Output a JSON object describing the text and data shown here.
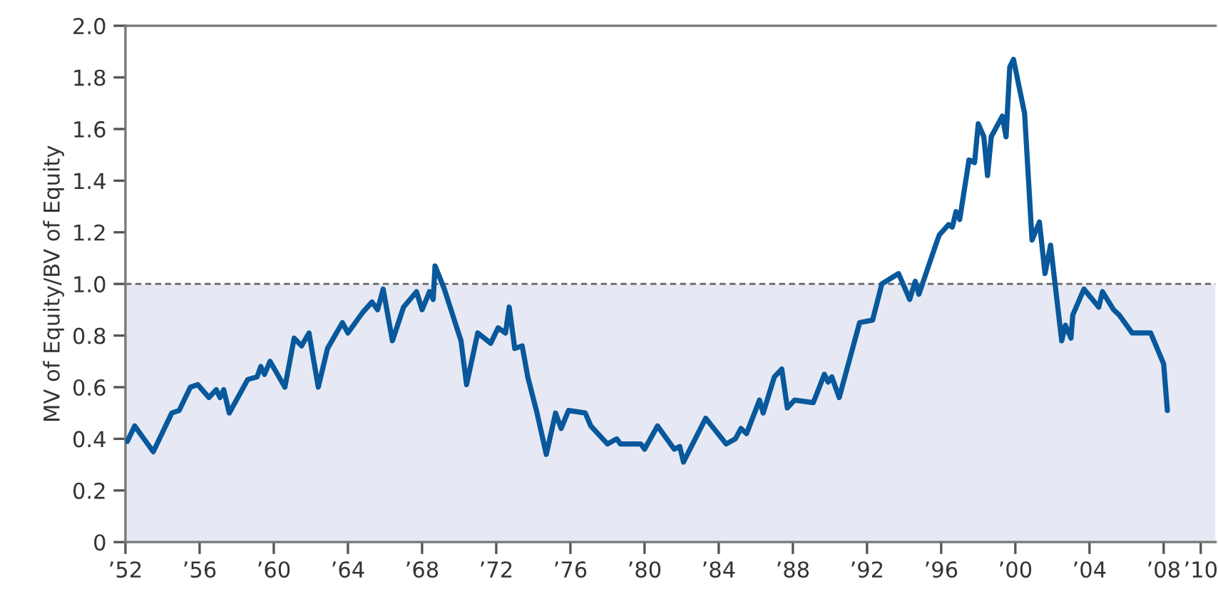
{
  "chart_data": {
    "type": "line",
    "ylabel": "MV of Equity/BV of Equity",
    "x": [
      1952.1,
      1952.5,
      1953.5,
      1954.5,
      1954.9,
      1955.5,
      1955.9,
      1956.5,
      1956.9,
      1957.1,
      1957.3,
      1957.6,
      1958.6,
      1959.1,
      1959.3,
      1959.5,
      1959.8,
      1960.6,
      1961.1,
      1961.5,
      1961.9,
      1962.4,
      1962.9,
      1963.7,
      1964.0,
      1964.8,
      1965.3,
      1965.6,
      1965.9,
      1966.4,
      1967.0,
      1967.7,
      1968.0,
      1968.4,
      1968.6,
      1968.7,
      1969.2,
      1970.1,
      1970.4,
      1971.0,
      1971.7,
      1972.1,
      1972.5,
      1972.7,
      1973.0,
      1973.4,
      1973.7,
      1974.2,
      1974.7,
      1975.2,
      1975.5,
      1975.9,
      1976.8,
      1977.1,
      1978.0,
      1978.5,
      1978.7,
      1979.8,
      1980.0,
      1980.7,
      1981.6,
      1981.9,
      1982.1,
      1983.3,
      1984.4,
      1984.9,
      1985.2,
      1985.5,
      1986.2,
      1986.4,
      1987.0,
      1987.4,
      1987.7,
      1988.1,
      1989.1,
      1989.7,
      1989.9,
      1990.1,
      1990.5,
      1991.6,
      1992.3,
      1992.8,
      1993.7,
      1994.3,
      1994.6,
      1994.8,
      1995.7,
      1995.9,
      1996.4,
      1996.6,
      1996.8,
      1997.0,
      1997.5,
      1997.8,
      1998.0,
      1998.3,
      1998.5,
      1998.7,
      1999.3,
      1999.5,
      1999.7,
      1999.9,
      2000.5,
      2000.9,
      2001.3,
      2001.6,
      2001.9,
      2002.5,
      2002.7,
      2003.0,
      2003.1,
      2003.7,
      2004.5,
      2004.7,
      2005.3,
      2005.6,
      2006.3,
      2006.6,
      2007.3,
      2008.0,
      2008.2
    ],
    "series": [
      {
        "color": "#08589b",
        "values": [
          0.39,
          0.45,
          0.35,
          0.5,
          0.51,
          0.6,
          0.61,
          0.56,
          0.59,
          0.56,
          0.59,
          0.5,
          0.63,
          0.64,
          0.68,
          0.65,
          0.7,
          0.6,
          0.79,
          0.76,
          0.81,
          0.6,
          0.75,
          0.85,
          0.81,
          0.89,
          0.93,
          0.9,
          0.98,
          0.78,
          0.91,
          0.97,
          0.9,
          0.97,
          0.94,
          1.07,
          0.98,
          0.78,
          0.61,
          0.81,
          0.77,
          0.83,
          0.81,
          0.91,
          0.75,
          0.76,
          0.64,
          0.5,
          0.34,
          0.5,
          0.44,
          0.51,
          0.5,
          0.45,
          0.38,
          0.4,
          0.38,
          0.38,
          0.36,
          0.45,
          0.36,
          0.37,
          0.31,
          0.48,
          0.38,
          0.4,
          0.44,
          0.42,
          0.55,
          0.5,
          0.64,
          0.67,
          0.52,
          0.55,
          0.54,
          0.65,
          0.62,
          0.64,
          0.56,
          0.85,
          0.86,
          1.0,
          1.04,
          0.94,
          1.01,
          0.96,
          1.15,
          1.19,
          1.23,
          1.22,
          1.28,
          1.25,
          1.48,
          1.47,
          1.62,
          1.57,
          1.42,
          1.57,
          1.65,
          1.57,
          1.84,
          1.87,
          1.66,
          1.17,
          1.24,
          1.04,
          1.15,
          0.78,
          0.84,
          0.79,
          0.88,
          0.98,
          0.91,
          0.97,
          0.9,
          0.88,
          0.81,
          0.81,
          0.81,
          0.69,
          0.51
        ]
      }
    ],
    "xlim": [
      1952,
      2010.8
    ],
    "xticks": [
      {
        "value": 1952,
        "label": "’52"
      },
      {
        "value": 1956,
        "label": "’56"
      },
      {
        "value": 1960,
        "label": "’60"
      },
      {
        "value": 1964,
        "label": "’64"
      },
      {
        "value": 1968,
        "label": "’68"
      },
      {
        "value": 1972,
        "label": "’72"
      },
      {
        "value": 1976,
        "label": "’76"
      },
      {
        "value": 1980,
        "label": "’80"
      },
      {
        "value": 1984,
        "label": "’84"
      },
      {
        "value": 1988,
        "label": "’88"
      },
      {
        "value": 1992,
        "label": "’92"
      },
      {
        "value": 1996,
        "label": "’96"
      },
      {
        "value": 2000,
        "label": "’00"
      },
      {
        "value": 2004,
        "label": "’04"
      },
      {
        "value": 2008,
        "label": "’08"
      },
      {
        "value": 2010,
        "label": "’10"
      }
    ],
    "ylim": [
      0,
      2.0
    ],
    "yticks": [
      {
        "value": 0,
        "label": "0"
      },
      {
        "value": 0.2,
        "label": "0.2"
      },
      {
        "value": 0.4,
        "label": "0.4"
      },
      {
        "value": 0.6,
        "label": "0.6"
      },
      {
        "value": 0.8,
        "label": "0.8"
      },
      {
        "value": 1.0,
        "label": "1.0"
      },
      {
        "value": 1.2,
        "label": "1.2"
      },
      {
        "value": 1.4,
        "label": "1.4"
      },
      {
        "value": 1.6,
        "label": "1.6"
      },
      {
        "value": 1.8,
        "label": "1.8"
      },
      {
        "value": 2.0,
        "label": "2.0"
      }
    ],
    "ref_lines": [
      {
        "axis": "y",
        "value": 1.0,
        "color": "#666666",
        "line_style": "dashed"
      }
    ],
    "bands": [
      {
        "axis": "y",
        "from": 0,
        "to": 1.0,
        "color": "#e6e9f3"
      }
    ],
    "grid": false,
    "legend": false,
    "marker": "none",
    "line_style": "solid"
  }
}
